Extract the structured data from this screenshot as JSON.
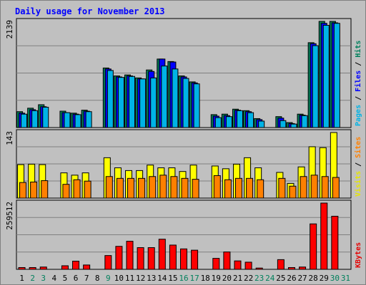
{
  "chart_data": {
    "type": "bar",
    "title": "Daily usage for November 2013",
    "categories": [
      "1",
      "2",
      "3",
      "4",
      "5",
      "6",
      "7",
      "8",
      "9",
      "10",
      "11",
      "12",
      "13",
      "14",
      "15",
      "16",
      "17",
      "18",
      "19",
      "20",
      "21",
      "22",
      "23",
      "24",
      "25",
      "26",
      "27",
      "28",
      "29",
      "30",
      "31"
    ],
    "weekend_days": [
      "2",
      "3",
      "9",
      "16",
      "17",
      "23",
      "24",
      "30",
      "31"
    ],
    "panels": [
      {
        "key": "pages_files_hits",
        "max_label": "2139",
        "ymax": 2139,
        "side_labels": [
          {
            "text": "Pages",
            "color": "#00b3e6"
          },
          {
            "text": " / ",
            "color": "#000000"
          },
          {
            "text": "Files",
            "color": "#0000ff"
          },
          {
            "text": " / ",
            "color": "#000000"
          },
          {
            "text": "Hits",
            "color": "#00805c"
          }
        ],
        "series": [
          {
            "name": "Hits",
            "color": "#00805c",
            "values": [
              320,
              390,
              460,
              null,
              330,
              290,
              350,
              null,
              1200,
              1040,
              1060,
              1000,
              1160,
              1380,
              1330,
              1040,
              920,
              null,
              260,
              270,
              370,
              340,
              180,
              null,
              220,
              100,
              270,
              1710,
              2139,
              2139,
              null
            ]
          },
          {
            "name": "Files",
            "color": "#0000ff",
            "values": [
              290,
              360,
              420,
              null,
              300,
              270,
              330,
              null,
              1180,
              1020,
              1040,
              980,
              1130,
              1380,
              1320,
              1020,
              900,
              null,
              230,
              240,
              350,
              320,
              160,
              null,
              190,
              80,
              250,
              1690,
              2100,
              2110,
              null
            ]
          },
          {
            "name": "Pages",
            "color": "#00b3e6",
            "values": [
              270,
              340,
              410,
              null,
              300,
              260,
              320,
              null,
              1150,
              1010,
              1030,
              980,
              1000,
              1240,
              1180,
              990,
              880,
              null,
              200,
              220,
              340,
              300,
              130,
              null,
              140,
              70,
              240,
              1650,
              2060,
              2100,
              null
            ]
          }
        ]
      },
      {
        "key": "visits_sites",
        "max_label": "143",
        "ymax": 143,
        "side_labels": [
          {
            "text": "Visits",
            "color": "#e6e600"
          },
          {
            "text": " / ",
            "color": "#000000"
          },
          {
            "text": "Sites",
            "color": "#ff8000"
          }
        ],
        "series": [
          {
            "name": "Visits",
            "color": "#ffff00",
            "values": [
              73,
              74,
              73,
              null,
              55,
              50,
              55,
              null,
              88,
              66,
              60,
              60,
              72,
              66,
              66,
              58,
              72,
              null,
              70,
              64,
              74,
              88,
              66,
              null,
              56,
              32,
              68,
              112,
              110,
              143,
              null
            ]
          },
          {
            "name": "Sites",
            "color": "#ff8000",
            "values": [
              34,
              35,
              38,
              null,
              30,
              40,
              37,
              null,
              47,
              43,
              43,
              43,
              47,
              50,
              47,
              43,
              41,
              null,
              49,
              40,
              43,
              43,
              40,
              null,
              43,
              26,
              47,
              50,
              47,
              45,
              null
            ]
          }
        ]
      },
      {
        "key": "kbytes",
        "max_label": "259512",
        "ymax": 259512,
        "side_labels": [
          {
            "text": "KBytes",
            "color": "#e60000"
          }
        ],
        "series": [
          {
            "name": "KBytes",
            "color": "#ff0000",
            "values": [
              7000,
              7000,
              9000,
              null,
              14000,
              32000,
              17000,
              null,
              54000,
              90000,
              110000,
              85000,
              85000,
              118000,
              95000,
              80000,
              75000,
              null,
              43000,
              68000,
              33000,
              28000,
              5000,
              null,
              38000,
              7000,
              9000,
              178000,
              259512,
              208000,
              null
            ]
          }
        ]
      }
    ],
    "colors": {
      "background": "#c0c0c0",
      "grid": "#808080",
      "weekday_label": "#000000",
      "weekend_label": "#00805c",
      "title": "#0000ff"
    }
  }
}
